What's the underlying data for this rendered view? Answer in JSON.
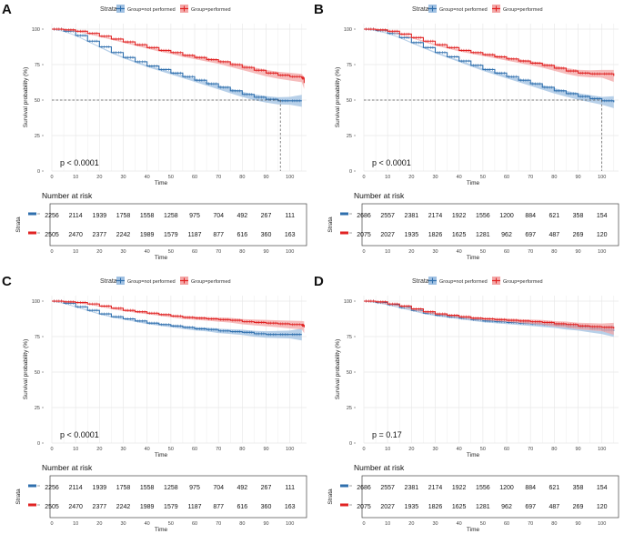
{
  "colors": {
    "not_performed": "#2f6fad",
    "performed": "#e02222",
    "not_performed_band": "#9fc0e2",
    "performed_band": "#f3a6a6",
    "grid": "#e8e8e8"
  },
  "common": {
    "legend_title": "Strata",
    "legend_items": [
      "Group=not performed",
      "Group=performed"
    ],
    "ylabel": "Survival probability (%)",
    "xlabel": "Time",
    "y_ticks": [
      0,
      25,
      50,
      75,
      100
    ],
    "x_ticks": [
      0,
      10,
      20,
      30,
      40,
      50,
      60,
      70,
      80,
      90,
      100
    ],
    "risk_title": "Number at risk",
    "risk_ylabel": "Strata",
    "risk_xlabel": "Time"
  },
  "chart_data": [
    {
      "panel": "A",
      "type": "line",
      "title": "",
      "xlabel": "Time",
      "ylabel": "Survival probability (%)",
      "xlim": [
        0,
        107
      ],
      "ylim": [
        0,
        100
      ],
      "pvalue": "p < 0.0001",
      "median_reference": {
        "y": 50,
        "x": 96
      },
      "series": [
        {
          "name": "Group=not performed",
          "x": [
            0,
            5,
            10,
            15,
            20,
            25,
            30,
            35,
            40,
            45,
            50,
            55,
            60,
            65,
            70,
            75,
            80,
            85,
            90,
            95,
            100,
            105
          ],
          "y": [
            100,
            98.5,
            95.5,
            91.5,
            87.5,
            83.5,
            80,
            77,
            74,
            71.5,
            69,
            66.5,
            64,
            61.5,
            59,
            56.5,
            54,
            52,
            50.5,
            49.5,
            49.5,
            49.5
          ]
        },
        {
          "name": "Group=performed",
          "x": [
            0,
            5,
            10,
            15,
            20,
            25,
            30,
            35,
            40,
            45,
            50,
            55,
            60,
            65,
            70,
            75,
            80,
            85,
            90,
            95,
            100,
            105,
            106
          ],
          "y": [
            100,
            99.5,
            98.5,
            97,
            95,
            93,
            91,
            89,
            87,
            85,
            83.5,
            81.5,
            80,
            78.5,
            77,
            75,
            73,
            71,
            69,
            67.5,
            66.5,
            65.5,
            62
          ]
        }
      ],
      "risk_table": {
        "times": [
          0,
          10,
          20,
          30,
          40,
          50,
          60,
          70,
          80,
          90,
          100
        ],
        "not_performed": [
          2256,
          2114,
          1939,
          1758,
          1558,
          1258,
          975,
          704,
          492,
          267,
          111
        ],
        "performed": [
          2505,
          2470,
          2377,
          2242,
          1989,
          1579,
          1187,
          877,
          616,
          360,
          163
        ]
      }
    },
    {
      "panel": "B",
      "type": "line",
      "title": "",
      "xlabel": "Time",
      "ylabel": "Survival probability (%)",
      "xlim": [
        0,
        107
      ],
      "ylim": [
        0,
        100
      ],
      "pvalue": "p < 0.0001",
      "median_reference": {
        "y": 50,
        "x": 100
      },
      "series": [
        {
          "name": "Group=not performed",
          "x": [
            0,
            5,
            10,
            15,
            20,
            25,
            30,
            35,
            40,
            45,
            50,
            55,
            60,
            65,
            70,
            75,
            80,
            85,
            90,
            95,
            100,
            105
          ],
          "y": [
            100,
            99,
            97,
            94,
            90.5,
            87,
            83.5,
            80.5,
            77.5,
            74.5,
            71.5,
            69,
            66.5,
            64,
            61.5,
            59,
            56.5,
            54.5,
            52.5,
            51,
            49.5,
            48.5
          ]
        },
        {
          "name": "Group=performed",
          "x": [
            0,
            5,
            10,
            15,
            20,
            25,
            30,
            35,
            40,
            45,
            50,
            55,
            60,
            65,
            70,
            75,
            80,
            85,
            90,
            95,
            100,
            105
          ],
          "y": [
            100,
            99.5,
            98.5,
            96.5,
            94,
            91.5,
            89,
            87,
            85,
            83.5,
            82,
            80.5,
            79,
            77.5,
            76,
            74.5,
            72.5,
            70.5,
            69,
            68.5,
            68.5,
            67
          ]
        }
      ],
      "risk_table": {
        "times": [
          0,
          10,
          20,
          30,
          40,
          50,
          60,
          70,
          80,
          90,
          100
        ],
        "not_performed": [
          2686,
          2557,
          2381,
          2174,
          1922,
          1556,
          1200,
          884,
          621,
          358,
          154
        ],
        "performed": [
          2075,
          2027,
          1935,
          1826,
          1625,
          1281,
          962,
          697,
          487,
          269,
          120
        ]
      }
    },
    {
      "panel": "C",
      "type": "line",
      "title": "",
      "xlabel": "Time",
      "ylabel": "Survival probability (%)",
      "xlim": [
        0,
        107
      ],
      "ylim": [
        0,
        100
      ],
      "pvalue": "p < 0.0001",
      "median_reference": null,
      "series": [
        {
          "name": "Group=not performed",
          "x": [
            0,
            5,
            10,
            15,
            20,
            25,
            30,
            35,
            40,
            45,
            50,
            55,
            60,
            65,
            70,
            75,
            80,
            85,
            90,
            95,
            100,
            105
          ],
          "y": [
            100,
            98.5,
            96,
            93.5,
            91,
            89,
            87.5,
            86,
            84.5,
            83.5,
            82.5,
            81.5,
            80.5,
            80,
            79,
            78.5,
            78,
            77,
            76.5,
            76.5,
            76.5,
            76.5
          ]
        },
        {
          "name": "Group=performed",
          "x": [
            0,
            5,
            10,
            15,
            20,
            25,
            30,
            35,
            40,
            45,
            50,
            55,
            60,
            65,
            70,
            75,
            80,
            85,
            90,
            95,
            100,
            105,
            106
          ],
          "y": [
            100,
            99.5,
            99,
            98,
            96.5,
            95,
            93.5,
            92.5,
            91.5,
            90.5,
            89.5,
            88.5,
            88,
            87.5,
            87,
            86.5,
            85.5,
            85,
            84.5,
            84,
            83.5,
            83,
            81.5
          ]
        }
      ],
      "risk_table": {
        "times": [
          0,
          10,
          20,
          30,
          40,
          50,
          60,
          70,
          80,
          90,
          100
        ],
        "not_performed": [
          2256,
          2114,
          1939,
          1758,
          1558,
          1258,
          975,
          704,
          492,
          267,
          111
        ],
        "performed": [
          2505,
          2470,
          2377,
          2242,
          1989,
          1579,
          1187,
          877,
          616,
          360,
          163
        ]
      }
    },
    {
      "panel": "D",
      "type": "line",
      "title": "",
      "xlabel": "Time",
      "ylabel": "Survival probability (%)",
      "xlim": [
        0,
        107
      ],
      "ylim": [
        0,
        100
      ],
      "pvalue": "p = 0.17",
      "median_reference": null,
      "series": [
        {
          "name": "Group=not performed",
          "x": [
            0,
            5,
            10,
            15,
            20,
            25,
            30,
            35,
            40,
            45,
            50,
            55,
            60,
            65,
            70,
            75,
            80,
            85,
            90,
            95,
            100,
            105
          ],
          "y": [
            100,
            99,
            97.5,
            95.5,
            93.5,
            91.5,
            90,
            89,
            88,
            87,
            86,
            85.5,
            85,
            84.5,
            84,
            83.5,
            83,
            82,
            81.5,
            80.5,
            79.5,
            79
          ]
        },
        {
          "name": "Group=performed",
          "x": [
            0,
            5,
            10,
            15,
            20,
            25,
            30,
            35,
            40,
            45,
            50,
            55,
            60,
            65,
            70,
            75,
            80,
            85,
            90,
            95,
            100,
            105
          ],
          "y": [
            100,
            99.5,
            98,
            96.5,
            94.5,
            92.5,
            91,
            90,
            89,
            88,
            87.5,
            87,
            86.5,
            86,
            85.5,
            85,
            84,
            83.5,
            82.5,
            82,
            81.5,
            80.5
          ]
        }
      ],
      "risk_table": {
        "times": [
          0,
          10,
          20,
          30,
          40,
          50,
          60,
          70,
          80,
          90,
          100
        ],
        "not_performed": [
          2686,
          2557,
          2381,
          2174,
          1922,
          1556,
          1200,
          884,
          621,
          358,
          154
        ],
        "performed": [
          2075,
          2027,
          1935,
          1826,
          1625,
          1281,
          962,
          697,
          487,
          269,
          120
        ]
      }
    }
  ]
}
